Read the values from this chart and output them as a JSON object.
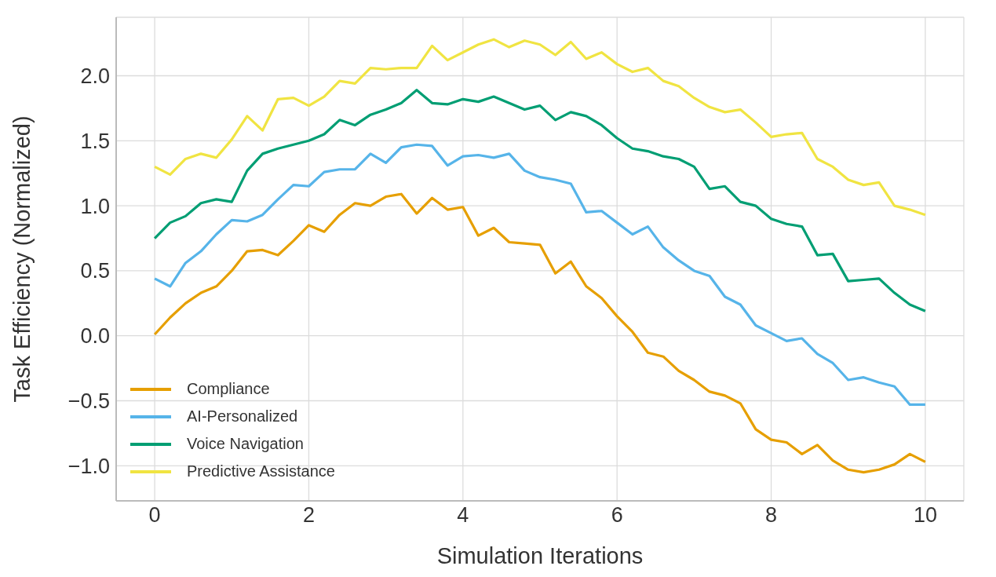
{
  "chart_data": {
    "type": "line",
    "xlabel": "Simulation Iterations",
    "ylabel": "Task Efficiency (Normalized)",
    "x": [
      0,
      0.2,
      0.4,
      0.6,
      0.8,
      1,
      1.2,
      1.4,
      1.6,
      1.8,
      2,
      2.2,
      2.4,
      2.6,
      2.8,
      3,
      3.2,
      3.4,
      3.6,
      3.8,
      4,
      4.2,
      4.4,
      4.6,
      4.8,
      5,
      5.2,
      5.4,
      5.6,
      5.8,
      6,
      6.2,
      6.4,
      6.6,
      6.8,
      7,
      7.2,
      7.4,
      7.6,
      7.8,
      8,
      8.2,
      8.4,
      8.6,
      8.8,
      9,
      9.2,
      9.4,
      9.6,
      9.8,
      10
    ],
    "series": [
      {
        "name": "Compliance",
        "color": "#e69f00",
        "values": [
          0.01,
          0.14,
          0.25,
          0.33,
          0.38,
          0.5,
          0.65,
          0.66,
          0.62,
          0.73,
          0.85,
          0.8,
          0.93,
          1.02,
          1.0,
          1.07,
          1.09,
          0.94,
          1.06,
          0.97,
          0.99,
          0.77,
          0.83,
          0.72,
          0.71,
          0.7,
          0.48,
          0.57,
          0.38,
          0.29,
          0.15,
          0.03,
          -0.13,
          -0.16,
          -0.27,
          -0.34,
          -0.43,
          -0.46,
          -0.52,
          -0.72,
          -0.8,
          -0.82,
          -0.91,
          -0.84,
          -0.96,
          -1.03,
          -1.05,
          -1.03,
          -0.99,
          -0.91,
          -0.97
        ]
      },
      {
        "name": "AI-Personalized",
        "color": "#56b4e9",
        "values": [
          0.44,
          0.38,
          0.56,
          0.65,
          0.78,
          0.89,
          0.88,
          0.93,
          1.05,
          1.16,
          1.15,
          1.26,
          1.28,
          1.28,
          1.4,
          1.33,
          1.45,
          1.47,
          1.46,
          1.31,
          1.38,
          1.39,
          1.37,
          1.4,
          1.27,
          1.22,
          1.2,
          1.17,
          0.95,
          0.96,
          0.87,
          0.78,
          0.84,
          0.68,
          0.58,
          0.5,
          0.46,
          0.3,
          0.24,
          0.08,
          0.02,
          -0.04,
          -0.02,
          -0.14,
          -0.21,
          -0.34,
          -0.32,
          -0.36,
          -0.39,
          -0.53,
          -0.53
        ]
      },
      {
        "name": "Voice Navigation",
        "color": "#009e73",
        "values": [
          0.75,
          0.87,
          0.92,
          1.02,
          1.05,
          1.03,
          1.27,
          1.4,
          1.44,
          1.47,
          1.5,
          1.55,
          1.66,
          1.62,
          1.7,
          1.74,
          1.79,
          1.89,
          1.79,
          1.78,
          1.82,
          1.8,
          1.84,
          1.79,
          1.74,
          1.77,
          1.66,
          1.72,
          1.69,
          1.62,
          1.52,
          1.44,
          1.42,
          1.38,
          1.36,
          1.3,
          1.13,
          1.15,
          1.03,
          1.0,
          0.9,
          0.86,
          0.84,
          0.62,
          0.63,
          0.42,
          0.43,
          0.44,
          0.33,
          0.24,
          0.19
        ]
      },
      {
        "name": "Predictive Assistance",
        "color": "#f0e442",
        "values": [
          1.3,
          1.24,
          1.36,
          1.4,
          1.37,
          1.51,
          1.69,
          1.58,
          1.82,
          1.83,
          1.77,
          1.84,
          1.96,
          1.94,
          2.06,
          2.05,
          2.06,
          2.06,
          2.23,
          2.12,
          2.18,
          2.24,
          2.28,
          2.22,
          2.27,
          2.24,
          2.16,
          2.26,
          2.13,
          2.18,
          2.09,
          2.03,
          2.06,
          1.96,
          1.92,
          1.83,
          1.76,
          1.72,
          1.74,
          1.64,
          1.53,
          1.55,
          1.56,
          1.36,
          1.3,
          1.2,
          1.16,
          1.18,
          1.0,
          0.97,
          0.93
        ]
      }
    ],
    "xlim": [
      -0.5,
      10.5
    ],
    "xticks": [
      0,
      2,
      4,
      6,
      8,
      10
    ],
    "ylim": [
      -1.27,
      2.45
    ],
    "yticks": [
      {
        "value": -1,
        "label": "−1.0"
      },
      {
        "value": -0.5,
        "label": "−0.5"
      },
      {
        "value": 0,
        "label": "0.0"
      },
      {
        "value": 0.5,
        "label": "0.5"
      },
      {
        "value": 1,
        "label": "1.0"
      },
      {
        "value": 1.5,
        "label": "1.5"
      },
      {
        "value": 2,
        "label": "2.0"
      }
    ],
    "grid": true,
    "legend": "bottom left",
    "line_style": "solid",
    "marker": "none"
  }
}
